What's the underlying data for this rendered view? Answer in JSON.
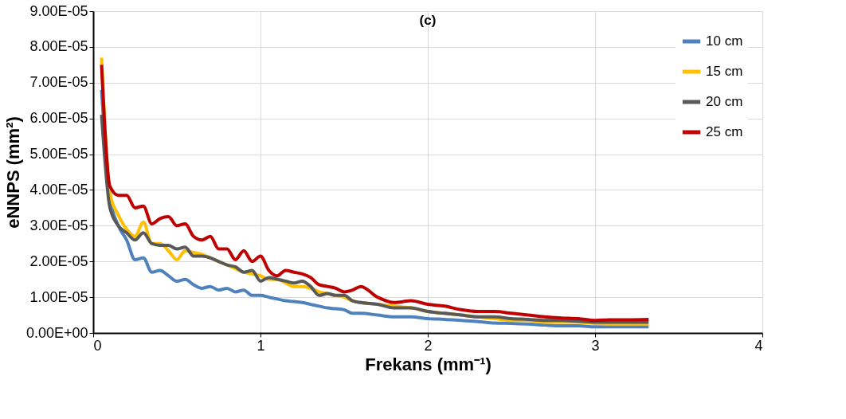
{
  "chart_data": {
    "type": "line",
    "title": "(c)",
    "xlabel": "Frekans (mm⁻¹)",
    "ylabel": "eNNPS (mm²)",
    "x": [
      0.05,
      0.1,
      0.15,
      0.2,
      0.25,
      0.3,
      0.35,
      0.4,
      0.45,
      0.5,
      0.55,
      0.6,
      0.65,
      0.7,
      0.75,
      0.8,
      0.85,
      0.9,
      0.95,
      1.0,
      1.05,
      1.1,
      1.15,
      1.2,
      1.25,
      1.3,
      1.35,
      1.4,
      1.45,
      1.5,
      1.55,
      1.6,
      1.7,
      1.8,
      1.9,
      2.0,
      2.1,
      2.2,
      2.3,
      2.4,
      2.5,
      2.6,
      2.7,
      2.8,
      2.9,
      3.0,
      3.1,
      3.2,
      3.32
    ],
    "series": [
      {
        "name": "10 cm",
        "color": "#4f81bd",
        "values": [
          6.8e-05,
          3.8e-05,
          3e-05,
          2.6e-05,
          2.05e-05,
          2.1e-05,
          1.7e-05,
          1.75e-05,
          1.6e-05,
          1.45e-05,
          1.5e-05,
          1.35e-05,
          1.25e-05,
          1.3e-05,
          1.2e-05,
          1.25e-05,
          1.15e-05,
          1.2e-05,
          1.05e-05,
          1.05e-05,
          1e-05,
          9.5e-06,
          9e-06,
          8.8e-06,
          8.5e-06,
          8e-06,
          7.5e-06,
          7e-06,
          6.8e-06,
          6.5e-06,
          5.5e-06,
          5.5e-06,
          5e-06,
          4.5e-06,
          4.5e-06,
          4e-06,
          3.8e-06,
          3.5e-06,
          3.2e-06,
          2.8e-06,
          2.7e-06,
          2.5e-06,
          2.2e-06,
          2e-06,
          2e-06,
          1.7e-06,
          1.7e-06,
          1.7e-06,
          1.7e-06
        ]
      },
      {
        "name": "15 cm",
        "color": "#ffc000",
        "values": [
          7.7e-05,
          3.9e-05,
          3.3e-05,
          2.9e-05,
          2.7e-05,
          3.1e-05,
          2.5e-05,
          2.5e-05,
          2.3e-05,
          2.05e-05,
          2.3e-05,
          2.25e-05,
          2.2e-05,
          2.1e-05,
          2e-05,
          1.9e-05,
          1.8e-05,
          1.7e-05,
          1.65e-05,
          1.6e-05,
          1.5e-05,
          1.5e-05,
          1.4e-05,
          1.3e-05,
          1.3e-05,
          1.25e-05,
          1.15e-05,
          1.1e-05,
          1.05e-05,
          1e-05,
          9e-06,
          8.5e-06,
          8e-06,
          7.5e-06,
          7e-06,
          6e-06,
          5.5e-06,
          5e-06,
          4.5e-06,
          4e-06,
          3.5e-06,
          3.5e-06,
          3e-06,
          3e-06,
          3e-06,
          2.7e-06,
          2.5e-06,
          2.5e-06,
          2.5e-06
        ]
      },
      {
        "name": "20 cm",
        "color": "#595959",
        "values": [
          6.1e-05,
          3.5e-05,
          3e-05,
          2.8e-05,
          2.6e-05,
          2.8e-05,
          2.5e-05,
          2.45e-05,
          2.45e-05,
          2.35e-05,
          2.4e-05,
          2.15e-05,
          2.15e-05,
          2.1e-05,
          2e-05,
          1.9e-05,
          1.85e-05,
          1.7e-05,
          1.75e-05,
          1.45e-05,
          1.55e-05,
          1.5e-05,
          1.45e-05,
          1.4e-05,
          1.45e-05,
          1.3e-05,
          1.05e-05,
          1.1e-05,
          1.05e-05,
          1.05e-05,
          9e-06,
          8.5e-06,
          8e-06,
          7e-06,
          7e-06,
          6e-06,
          5.5e-06,
          5e-06,
          4.5e-06,
          4.5e-06,
          4e-06,
          3.8e-06,
          3.5e-06,
          3.5e-06,
          3.3e-06,
          3e-06,
          3e-06,
          3e-06,
          3e-06
        ]
      },
      {
        "name": "25 cm",
        "color": "#c00000",
        "values": [
          7.5e-05,
          4.1e-05,
          3.85e-05,
          3.85e-05,
          3.5e-05,
          3.55e-05,
          3.05e-05,
          3.2e-05,
          3.25e-05,
          3e-05,
          3.05e-05,
          2.7e-05,
          2.6e-05,
          2.7e-05,
          2.35e-05,
          2.35e-05,
          2.05e-05,
          2.3e-05,
          2e-05,
          2.15e-05,
          1.75e-05,
          1.6e-05,
          1.75e-05,
          1.7e-05,
          1.65e-05,
          1.55e-05,
          1.35e-05,
          1.3e-05,
          1.25e-05,
          1.15e-05,
          1.2e-05,
          1.3e-05,
          1e-05,
          8.5e-06,
          9e-06,
          8e-06,
          7.5e-06,
          6.5e-06,
          6e-06,
          6e-06,
          5.5e-06,
          5e-06,
          4.5e-06,
          4.2e-06,
          4e-06,
          3.5e-06,
          3.7e-06,
          3.7e-06,
          3.8e-06
        ]
      }
    ],
    "xlim": [
      0,
      4
    ],
    "xticks": [
      0,
      1,
      2,
      3,
      4
    ],
    "ylim": [
      0,
      9e-05
    ],
    "yticks": [
      {
        "value": 0,
        "label": "0.00E+00"
      },
      {
        "value": 1e-05,
        "label": "1.00E-05"
      },
      {
        "value": 2e-05,
        "label": "2.00E-05"
      },
      {
        "value": 3e-05,
        "label": "3.00E-05"
      },
      {
        "value": 4e-05,
        "label": "4.00E-05"
      },
      {
        "value": 5e-05,
        "label": "5.00E-05"
      },
      {
        "value": 6e-05,
        "label": "6.00E-05"
      },
      {
        "value": 7e-05,
        "label": "7.00E-05"
      },
      {
        "value": 8e-05,
        "label": "8.00E-05"
      },
      {
        "value": 9e-05,
        "label": "9.00E-05"
      }
    ],
    "grid": true,
    "legend": "top right",
    "marker": "none",
    "line_style": "solid"
  }
}
